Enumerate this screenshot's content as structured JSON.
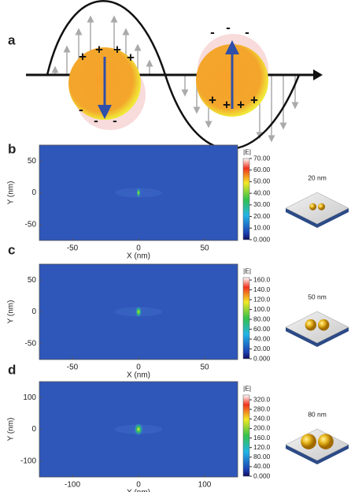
{
  "panels": [
    {
      "label": "a",
      "plus": "+",
      "minus": "-"
    },
    {
      "label": "b",
      "x_label": "X (nm)",
      "y_label": "Y (nm)",
      "xlim": [
        -75,
        75
      ],
      "xticks": [
        -50,
        0,
        50
      ],
      "ylim": [
        -75,
        75
      ],
      "yticks": [
        -50,
        0,
        50
      ],
      "colorbar": {
        "title": "|E|",
        "lim": [
          0,
          70
        ],
        "ticks": [
          {
            "value": 70,
            "label": "70.00"
          },
          {
            "value": 60,
            "label": "60.00"
          },
          {
            "value": 50,
            "label": "50.00"
          },
          {
            "value": 40,
            "label": "40.00"
          },
          {
            "value": 30,
            "label": "30.00"
          },
          {
            "value": 20,
            "label": "20.00"
          },
          {
            "value": 10,
            "label": "10.00"
          },
          {
            "value": 0,
            "label": "0.000"
          }
        ]
      },
      "size_label": "20 nm"
    },
    {
      "label": "c",
      "x_label": "X (nm)",
      "y_label": "Y (nm)",
      "xlim": [
        -75,
        75
      ],
      "xticks": [
        -50,
        0,
        50
      ],
      "ylim": [
        -75,
        75
      ],
      "yticks": [
        -50,
        0,
        50
      ],
      "colorbar": {
        "title": "|E|",
        "lim": [
          0,
          165
        ],
        "ticks": [
          {
            "value": 160,
            "label": "160.0"
          },
          {
            "value": 140,
            "label": "140.0"
          },
          {
            "value": 120,
            "label": "120.0"
          },
          {
            "value": 100,
            "label": "100.0"
          },
          {
            "value": 80,
            "label": "80.00"
          },
          {
            "value": 60,
            "label": "60.00"
          },
          {
            "value": 40,
            "label": "40.00"
          },
          {
            "value": 20,
            "label": "20.00"
          },
          {
            "value": 0,
            "label": "0.000"
          }
        ]
      },
      "size_label": "50 nm"
    },
    {
      "label": "d",
      "x_label": "X (nm)",
      "y_label": "Y (nm)",
      "xlim": [
        -150,
        150
      ],
      "xticks": [
        -100,
        0,
        100
      ],
      "ylim": [
        -150,
        150
      ],
      "yticks": [
        -100,
        0,
        100
      ],
      "colorbar": {
        "title": "|E|",
        "lim": [
          0,
          340
        ],
        "ticks": [
          {
            "value": 320,
            "label": "320.0"
          },
          {
            "value": 280,
            "label": "280.0"
          },
          {
            "value": 240,
            "label": "240.0"
          },
          {
            "value": 200,
            "label": "200.0"
          },
          {
            "value": 160,
            "label": "160.0"
          },
          {
            "value": 120,
            "label": "120.0"
          },
          {
            "value": 80,
            "label": "80.00"
          },
          {
            "value": 40,
            "label": "40.00"
          },
          {
            "value": 0,
            "label": "0.000"
          }
        ]
      },
      "size_label": "80 nm"
    }
  ]
}
